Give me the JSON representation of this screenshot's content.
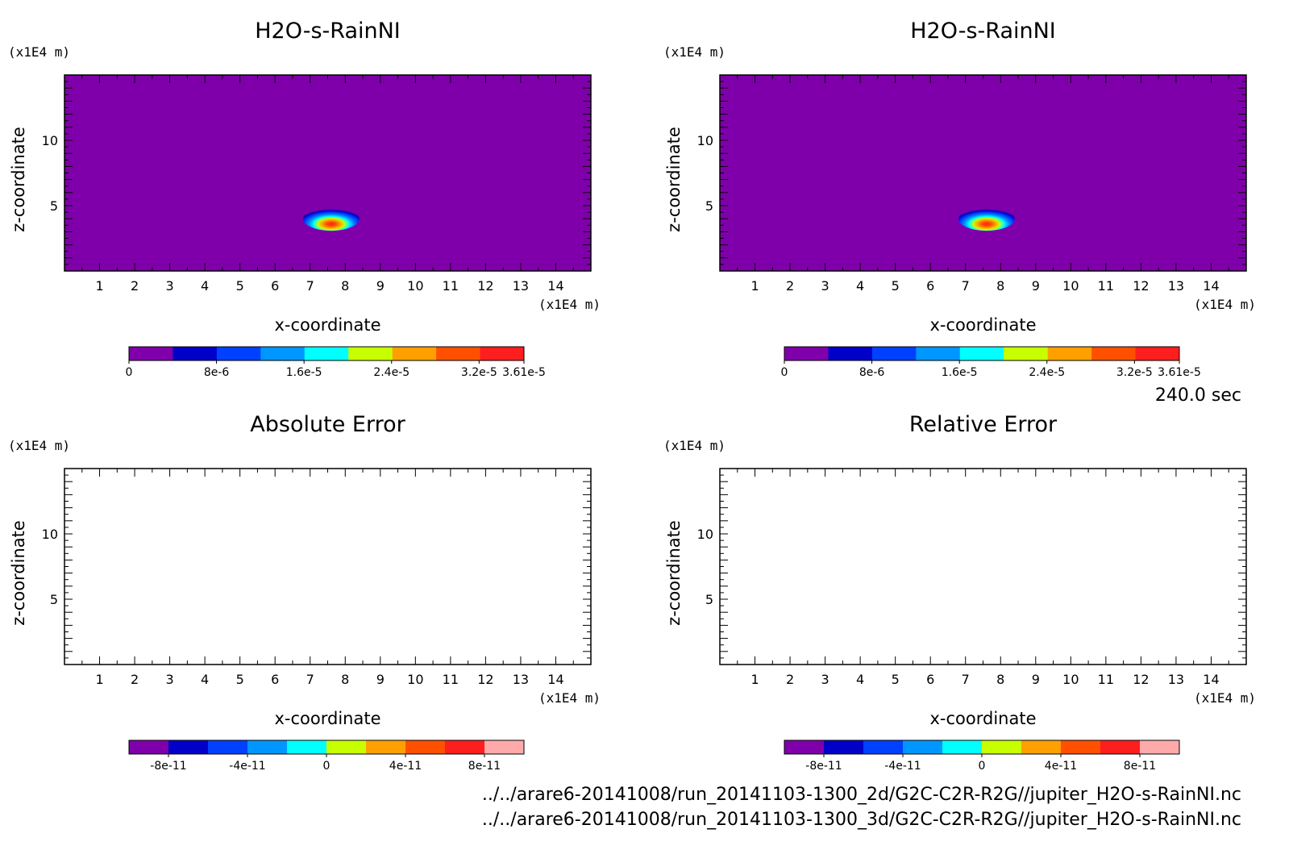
{
  "time_label": "240.0 sec",
  "footer": {
    "line1": "../../arare6-20141008/run_20141103-1300_2d/G2C-C2R-R2G//jupiter_H2O-s-RainNI.nc",
    "line2": "../../arare6-20141008/run_20141103-1300_3d/G2C-C2R-R2G//jupiter_H2O-s-RainNI.nc"
  },
  "chart_data": [
    {
      "type": "heatmap",
      "title": "H2O-s-RainNI",
      "xlabel": "x-coordinate",
      "ylabel": "z-coordinate",
      "x_unit": "(x1E4 m)",
      "y_unit": "(x1E4 m)",
      "xlim": [
        0,
        15
      ],
      "ylim": [
        0,
        15
      ],
      "xticks": [
        1,
        2,
        3,
        4,
        5,
        6,
        7,
        8,
        9,
        10,
        11,
        12,
        13,
        14
      ],
      "yticks": [
        5,
        10
      ],
      "background_color": "#7f00aa",
      "blob": {
        "x": 7.6,
        "z": 4.0,
        "max_value": 3.61e-05
      },
      "colorbar": {
        "colors": [
          "#7f00aa",
          "#0000c8",
          "#0040ff",
          "#0096ff",
          "#00ffff",
          "#c8ff00",
          "#ffa000",
          "#ff5000",
          "#ff1e1e"
        ],
        "tick_labels": [
          "0",
          "8e-6",
          "1.6e-5",
          "2.4e-5",
          "3.2e-5",
          "3.61e-5"
        ],
        "tick_values": [
          0,
          8e-06,
          1.6e-05,
          2.4e-05,
          3.2e-05,
          3.61e-05
        ],
        "range": [
          0,
          3.61e-05
        ]
      }
    },
    {
      "type": "heatmap",
      "title": "H2O-s-RainNI",
      "xlabel": "x-coordinate",
      "ylabel": "z-coordinate",
      "x_unit": "(x1E4 m)",
      "y_unit": "(x1E4 m)",
      "xlim": [
        0,
        15
      ],
      "ylim": [
        0,
        15
      ],
      "xticks": [
        1,
        2,
        3,
        4,
        5,
        6,
        7,
        8,
        9,
        10,
        11,
        12,
        13,
        14
      ],
      "yticks": [
        5,
        10
      ],
      "background_color": "#7f00aa",
      "blob": {
        "x": 7.6,
        "z": 4.0,
        "max_value": 3.61e-05
      },
      "colorbar": {
        "colors": [
          "#7f00aa",
          "#0000c8",
          "#0040ff",
          "#0096ff",
          "#00ffff",
          "#c8ff00",
          "#ffa000",
          "#ff5000",
          "#ff1e1e"
        ],
        "tick_labels": [
          "0",
          "8e-6",
          "1.6e-5",
          "2.4e-5",
          "3.2e-5",
          "3.61e-5"
        ],
        "tick_values": [
          0,
          8e-06,
          1.6e-05,
          2.4e-05,
          3.2e-05,
          3.61e-05
        ],
        "range": [
          0,
          3.61e-05
        ]
      }
    },
    {
      "type": "heatmap",
      "title": "Absolute Error",
      "xlabel": "x-coordinate",
      "ylabel": "z-coordinate",
      "x_unit": "(x1E4 m)",
      "y_unit": "(x1E4 m)",
      "xlim": [
        0,
        15
      ],
      "ylim": [
        0,
        15
      ],
      "xticks": [
        1,
        2,
        3,
        4,
        5,
        6,
        7,
        8,
        9,
        10,
        11,
        12,
        13,
        14
      ],
      "yticks": [
        5,
        10
      ],
      "background_color": "#ffffff",
      "colorbar": {
        "colors": [
          "#7f00aa",
          "#0000c8",
          "#0040ff",
          "#0096ff",
          "#00ffff",
          "#c8ff00",
          "#ffa000",
          "#ff5000",
          "#ff1e1e",
          "#ffaaaa"
        ],
        "tick_labels": [
          "-8e-11",
          "-4e-11",
          "0",
          "4e-11",
          "8e-11"
        ],
        "tick_values": [
          -8e-11,
          -4e-11,
          0,
          4e-11,
          8e-11
        ],
        "range": [
          -1e-10,
          1e-10
        ]
      }
    },
    {
      "type": "heatmap",
      "title": "Relative Error",
      "xlabel": "x-coordinate",
      "ylabel": "z-coordinate",
      "x_unit": "(x1E4 m)",
      "y_unit": "(x1E4 m)",
      "xlim": [
        0,
        15
      ],
      "ylim": [
        0,
        15
      ],
      "xticks": [
        1,
        2,
        3,
        4,
        5,
        6,
        7,
        8,
        9,
        10,
        11,
        12,
        13,
        14
      ],
      "yticks": [
        5,
        10
      ],
      "background_color": "#ffffff",
      "colorbar": {
        "colors": [
          "#7f00aa",
          "#0000c8",
          "#0040ff",
          "#0096ff",
          "#00ffff",
          "#c8ff00",
          "#ffa000",
          "#ff5000",
          "#ff1e1e",
          "#ffaaaa"
        ],
        "tick_labels": [
          "-8e-11",
          "-4e-11",
          "0",
          "4e-11",
          "8e-11"
        ],
        "tick_values": [
          -8e-11,
          -4e-11,
          0,
          4e-11,
          8e-11
        ],
        "range": [
          -1e-10,
          1e-10
        ]
      }
    }
  ]
}
